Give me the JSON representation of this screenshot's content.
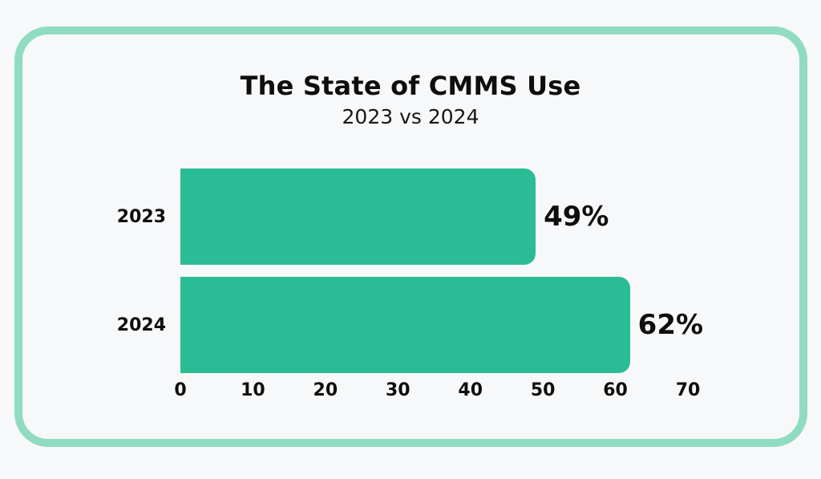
{
  "card": {
    "border_color": "#8fdcc0",
    "background": "#f7f8fa"
  },
  "chart_data": {
    "type": "bar",
    "orientation": "horizontal",
    "title": "The State of CMMS Use",
    "subtitle": "2023 vs 2024",
    "categories": [
      "2023",
      "2024"
    ],
    "values": [
      49,
      62
    ],
    "value_labels": [
      "49%",
      "62%"
    ],
    "xlim": [
      0,
      70
    ],
    "xticks": [
      0,
      10,
      20,
      30,
      40,
      50,
      60,
      70
    ],
    "bar_color": "#2abc94",
    "grid": false,
    "legend": false
  }
}
